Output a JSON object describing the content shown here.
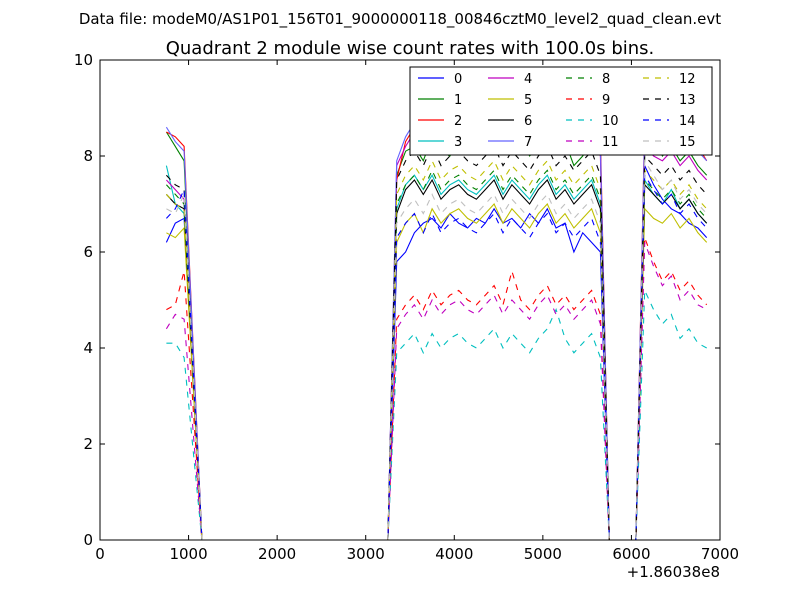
{
  "chart_data": {
    "type": "line",
    "suptitle": "Data file: modeM0/AS1P01_156T01_9000000118_00846cztM0_level2_quad_clean.evt",
    "title": "Quadrant 2 module wise count rates with 100.0s bins.",
    "xlabel": "",
    "ylabel": "",
    "x_offset_label": "+1.86038e8",
    "xlim": [
      0,
      7000
    ],
    "ylim": [
      0,
      10
    ],
    "x_ticks": [
      0,
      1000,
      2000,
      3000,
      4000,
      5000,
      6000,
      7000
    ],
    "x_tick_labels": [
      "0",
      "1000",
      "2000",
      "3000",
      "4000",
      "5000",
      "6000",
      "7000"
    ],
    "y_ticks": [
      0,
      2,
      4,
      6,
      8,
      10
    ],
    "y_tick_labels": [
      "0",
      "2",
      "4",
      "6",
      "8",
      "10"
    ],
    "grid": false,
    "legend_position": "top-right",
    "x": [
      750,
      850,
      950,
      1150,
      1250,
      1350,
      1450,
      1550,
      1650,
      1750,
      1850,
      1950,
      2050,
      2150,
      2250,
      2350,
      2450,
      2550,
      2650,
      2750,
      2850,
      2950,
      3050,
      3150,
      3250,
      3350,
      3450,
      3550,
      3650,
      3750,
      3850,
      3950,
      4050,
      4150,
      4250,
      4350,
      4450,
      4550,
      4650,
      4750,
      4850,
      4950,
      5050,
      5150,
      5250,
      5350,
      5450,
      5550,
      5650,
      5750,
      5850,
      5950,
      6050,
      6150,
      6250,
      6350,
      6450,
      6550,
      6650,
      6750,
      6850
    ],
    "series": [
      {
        "name": "0",
        "color": "#0000ff",
        "dash": "solid",
        "values": [
          6.2,
          6.6,
          6.7,
          0,
          0,
          0,
          0,
          0,
          0,
          0,
          0,
          0,
          0,
          0,
          0,
          0,
          0,
          0,
          0,
          0,
          0,
          0,
          0,
          0,
          0,
          5.8,
          6.0,
          6.4,
          6.6,
          6.7,
          6.5,
          6.8,
          6.6,
          6.5,
          6.7,
          6.6,
          6.9,
          6.6,
          6.7,
          6.5,
          6.8,
          6.6,
          6.9,
          6.5,
          6.6,
          6.0,
          6.4,
          6.2,
          6.0,
          0,
          0,
          0,
          0,
          7.8,
          7.4,
          7.1,
          6.9,
          6.8,
          6.6,
          6.5,
          6.3
        ]
      },
      {
        "name": "1",
        "color": "#008000",
        "dash": "solid",
        "values": [
          8.5,
          8.2,
          7.9,
          0,
          0,
          0,
          0,
          0,
          0,
          0,
          0,
          0,
          0,
          0,
          0,
          0,
          0,
          0,
          0,
          0,
          0,
          0,
          0,
          0,
          0,
          7.6,
          8.1,
          8.2,
          7.9,
          8.4,
          8.1,
          8.0,
          8.3,
          8.5,
          8.2,
          8.6,
          8.1,
          8.4,
          8.2,
          8.3,
          8.0,
          8.2,
          8.5,
          8.1,
          8.3,
          7.8,
          8.0,
          8.3,
          8.1,
          0,
          0,
          0,
          0,
          8.1,
          8.4,
          8.0,
          8.2,
          7.9,
          8.1,
          7.8,
          7.6
        ]
      },
      {
        "name": "2",
        "color": "#ff0000",
        "dash": "solid",
        "values": [
          8.5,
          8.4,
          8.2,
          0,
          0,
          0,
          0,
          0,
          0,
          0,
          0,
          0,
          0,
          0,
          0,
          0,
          0,
          0,
          0,
          0,
          0,
          0,
          0,
          0,
          0,
          7.5,
          8.3,
          8.6,
          8.4,
          8.8,
          8.7,
          8.5,
          8.9,
          8.6,
          8.7,
          8.9,
          8.6,
          8.8,
          8.7,
          8.6,
          8.9,
          8.5,
          8.7,
          8.8,
          8.6,
          8.3,
          8.7,
          8.9,
          8.4,
          0,
          0,
          0,
          0,
          8.7,
          8.5,
          8.4,
          8.6,
          8.3,
          8.4,
          8.2,
          7.9
        ]
      },
      {
        "name": "3",
        "color": "#00bfbf",
        "dash": "solid",
        "values": [
          7.8,
          7.0,
          6.8,
          0,
          0,
          0,
          0,
          0,
          0,
          0,
          0,
          0,
          0,
          0,
          0,
          0,
          0,
          0,
          0,
          0,
          0,
          0,
          0,
          0,
          0,
          6.9,
          7.4,
          7.6,
          7.3,
          7.6,
          7.2,
          7.4,
          7.5,
          7.3,
          7.2,
          7.4,
          7.6,
          7.2,
          7.5,
          7.3,
          7.1,
          7.4,
          7.6,
          7.2,
          7.4,
          7.1,
          7.3,
          7.5,
          7.0,
          0,
          0,
          0,
          0,
          7.5,
          7.2,
          7.0,
          7.3,
          6.9,
          7.1,
          6.8,
          6.6
        ]
      },
      {
        "name": "4",
        "color": "#bf00bf",
        "dash": "solid",
        "values": [
          7.5,
          7.3,
          7.1,
          0,
          0,
          0,
          0,
          0,
          0,
          0,
          0,
          0,
          0,
          0,
          0,
          0,
          0,
          0,
          0,
          0,
          0,
          0,
          0,
          0,
          0,
          7.8,
          8.2,
          8.5,
          8.3,
          8.6,
          8.2,
          8.4,
          8.5,
          8.3,
          8.2,
          8.4,
          8.6,
          8.2,
          8.5,
          8.3,
          8.1,
          8.4,
          8.6,
          8.2,
          8.4,
          8.1,
          8.3,
          8.5,
          8.0,
          0,
          0,
          0,
          0,
          8.2,
          8.0,
          7.9,
          8.1,
          7.8,
          8.0,
          7.7,
          7.5
        ]
      },
      {
        "name": "5",
        "color": "#bfbf00",
        "dash": "solid",
        "values": [
          6.4,
          6.3,
          6.5,
          0,
          0,
          0,
          0,
          0,
          0,
          0,
          0,
          0,
          0,
          0,
          0,
          0,
          0,
          0,
          0,
          0,
          0,
          0,
          0,
          0,
          0,
          6.2,
          6.6,
          6.8,
          6.4,
          6.9,
          6.6,
          6.8,
          6.9,
          6.7,
          6.6,
          6.8,
          7.0,
          6.6,
          6.9,
          6.7,
          6.5,
          6.8,
          7.0,
          6.6,
          6.8,
          6.5,
          6.7,
          6.9,
          6.4,
          0,
          0,
          0,
          0,
          6.9,
          6.7,
          6.6,
          6.8,
          6.5,
          6.7,
          6.4,
          6.2
        ]
      },
      {
        "name": "6",
        "color": "#000000",
        "dash": "solid",
        "values": [
          7.2,
          7.0,
          6.9,
          0,
          0,
          0,
          0,
          0,
          0,
          0,
          0,
          0,
          0,
          0,
          0,
          0,
          0,
          0,
          0,
          0,
          0,
          0,
          0,
          0,
          0,
          6.8,
          7.3,
          7.5,
          7.2,
          7.5,
          7.1,
          7.3,
          7.4,
          7.2,
          7.1,
          7.3,
          7.5,
          7.1,
          7.4,
          7.2,
          7.0,
          7.3,
          7.5,
          7.1,
          7.3,
          7.0,
          7.2,
          7.4,
          6.9,
          0,
          0,
          0,
          0,
          7.4,
          7.2,
          7.0,
          7.2,
          6.9,
          7.1,
          6.8,
          6.6
        ]
      },
      {
        "name": "7",
        "color": "#6464ff",
        "dash": "solid",
        "values": [
          8.6,
          8.3,
          8.1,
          0,
          0,
          0,
          0,
          0,
          0,
          0,
          0,
          0,
          0,
          0,
          0,
          0,
          0,
          0,
          0,
          0,
          0,
          0,
          0,
          0,
          0,
          7.9,
          8.4,
          8.7,
          8.5,
          8.8,
          8.4,
          8.6,
          8.7,
          8.5,
          8.4,
          8.6,
          8.8,
          8.4,
          8.7,
          8.5,
          8.3,
          8.6,
          8.8,
          8.4,
          8.6,
          8.3,
          8.5,
          8.7,
          8.2,
          0,
          0,
          0,
          0,
          8.6,
          8.4,
          8.3,
          8.5,
          8.2,
          8.4,
          8.1,
          7.9
        ]
      },
      {
        "name": "8",
        "color": "#008000",
        "dash": "dashed",
        "values": [
          7.4,
          7.2,
          7.0,
          0,
          0,
          0,
          0,
          0,
          0,
          0,
          0,
          0,
          0,
          0,
          0,
          0,
          0,
          0,
          0,
          0,
          0,
          0,
          0,
          0,
          0,
          7.0,
          7.4,
          7.6,
          7.3,
          7.7,
          7.3,
          7.5,
          7.6,
          7.4,
          7.3,
          7.5,
          7.7,
          7.3,
          7.6,
          7.4,
          7.2,
          7.5,
          7.7,
          7.3,
          7.5,
          7.2,
          7.4,
          7.6,
          7.1,
          0,
          0,
          0,
          0,
          7.5,
          7.3,
          7.1,
          7.3,
          7.0,
          7.2,
          6.9,
          6.7
        ]
      },
      {
        "name": "9",
        "color": "#ff0000",
        "dash": "dashed",
        "values": [
          4.8,
          4.9,
          5.6,
          0,
          0,
          0,
          0,
          0,
          0,
          0,
          0,
          0,
          0,
          0,
          0,
          0,
          0,
          0,
          0,
          0,
          0,
          0,
          0,
          0,
          0,
          4.6,
          4.9,
          5.1,
          4.8,
          5.2,
          4.9,
          5.1,
          5.2,
          5.0,
          4.9,
          5.1,
          5.3,
          4.9,
          5.6,
          5.0,
          4.8,
          5.1,
          5.3,
          4.9,
          5.1,
          4.8,
          5.0,
          5.2,
          4.7,
          0,
          0,
          0,
          0,
          6.3,
          5.8,
          5.4,
          5.6,
          5.2,
          5.4,
          5.1,
          4.9
        ]
      },
      {
        "name": "10",
        "color": "#00bfbf",
        "dash": "dashed",
        "values": [
          4.1,
          4.1,
          3.8,
          0,
          0,
          0,
          0,
          0,
          0,
          0,
          0,
          0,
          0,
          0,
          0,
          0,
          0,
          0,
          0,
          0,
          0,
          0,
          0,
          0,
          0,
          3.9,
          4.1,
          4.3,
          3.9,
          4.3,
          4.0,
          4.2,
          4.3,
          4.1,
          4.0,
          4.2,
          4.4,
          4.0,
          4.3,
          4.1,
          3.9,
          4.2,
          4.4,
          4.8,
          4.2,
          3.9,
          4.1,
          4.3,
          3.8,
          0,
          0,
          0,
          0,
          5.2,
          4.8,
          4.5,
          4.7,
          4.2,
          4.4,
          4.1,
          4.0
        ]
      },
      {
        "name": "11",
        "color": "#bf00bf",
        "dash": "dashed",
        "values": [
          4.4,
          4.7,
          4.6,
          0,
          0,
          0,
          0,
          0,
          0,
          0,
          0,
          0,
          0,
          0,
          0,
          0,
          0,
          0,
          0,
          0,
          0,
          0,
          0,
          0,
          0,
          4.4,
          4.7,
          4.9,
          4.6,
          5.0,
          4.7,
          4.9,
          5.0,
          4.8,
          4.7,
          4.9,
          5.1,
          4.7,
          5.0,
          4.8,
          4.6,
          4.9,
          5.1,
          4.7,
          4.9,
          4.6,
          4.8,
          5.0,
          4.5,
          0,
          0,
          0,
          0,
          6.2,
          5.7,
          5.3,
          5.5,
          5.0,
          5.2,
          4.9,
          4.8
        ]
      },
      {
        "name": "12",
        "color": "#bfbf00",
        "dash": "dashed",
        "values": [
          7.2,
          7.0,
          6.9,
          0,
          0,
          0,
          0,
          0,
          0,
          0,
          0,
          0,
          0,
          0,
          0,
          0,
          0,
          0,
          0,
          0,
          0,
          0,
          0,
          0,
          0,
          7.2,
          7.6,
          7.8,
          7.5,
          7.9,
          7.5,
          7.7,
          7.8,
          7.6,
          7.5,
          7.7,
          7.9,
          7.5,
          7.8,
          7.6,
          7.4,
          7.7,
          7.9,
          7.5,
          7.7,
          7.4,
          7.6,
          7.8,
          7.3,
          0,
          0,
          0,
          0,
          7.7,
          7.5,
          7.3,
          7.5,
          7.2,
          7.4,
          7.1,
          6.9
        ]
      },
      {
        "name": "13",
        "color": "#000000",
        "dash": "dashed",
        "values": [
          7.6,
          7.4,
          7.3,
          0,
          0,
          0,
          0,
          0,
          0,
          0,
          0,
          0,
          0,
          0,
          0,
          0,
          0,
          0,
          0,
          0,
          0,
          0,
          0,
          0,
          0,
          7.5,
          7.9,
          8.1,
          7.8,
          8.2,
          7.8,
          8.0,
          8.1,
          7.9,
          7.8,
          8.0,
          8.2,
          7.8,
          8.1,
          7.9,
          7.7,
          8.0,
          8.2,
          7.8,
          8.0,
          7.7,
          7.9,
          8.1,
          7.6,
          0,
          0,
          0,
          0,
          8.0,
          7.8,
          7.6,
          7.8,
          7.5,
          7.7,
          7.4,
          7.2
        ]
      },
      {
        "name": "14",
        "color": "#0000ff",
        "dash": "dashed",
        "values": [
          6.7,
          6.9,
          7.3,
          0,
          0,
          0,
          0,
          0,
          0,
          0,
          0,
          0,
          0,
          0,
          0,
          0,
          0,
          0,
          0,
          0,
          0,
          0,
          0,
          0,
          0,
          6.3,
          6.6,
          6.8,
          6.4,
          6.8,
          6.4,
          6.6,
          6.7,
          6.5,
          6.4,
          6.6,
          6.8,
          6.4,
          6.7,
          6.5,
          6.3,
          6.6,
          6.8,
          6.4,
          6.6,
          6.3,
          6.5,
          6.7,
          6.2,
          0,
          0,
          0,
          0,
          7.6,
          7.3,
          7.0,
          7.2,
          6.8,
          7.0,
          6.7,
          6.5
        ]
      },
      {
        "name": "15",
        "color": "#bfbfbf",
        "dash": "dashed",
        "values": [
          6.9,
          6.8,
          7.2,
          0,
          0,
          0,
          0,
          0,
          0,
          0,
          0,
          0,
          0,
          0,
          0,
          0,
          0,
          0,
          0,
          0,
          0,
          0,
          0,
          0,
          0,
          6.6,
          6.9,
          7.1,
          6.8,
          7.2,
          6.8,
          7.0,
          7.1,
          6.9,
          6.8,
          7.0,
          7.2,
          6.8,
          7.1,
          6.9,
          6.7,
          7.0,
          7.2,
          6.8,
          7.0,
          6.7,
          6.9,
          7.1,
          6.6,
          0,
          0,
          0,
          0,
          7.9,
          7.6,
          7.3,
          7.5,
          7.1,
          7.3,
          7.0,
          6.8
        ]
      }
    ]
  }
}
